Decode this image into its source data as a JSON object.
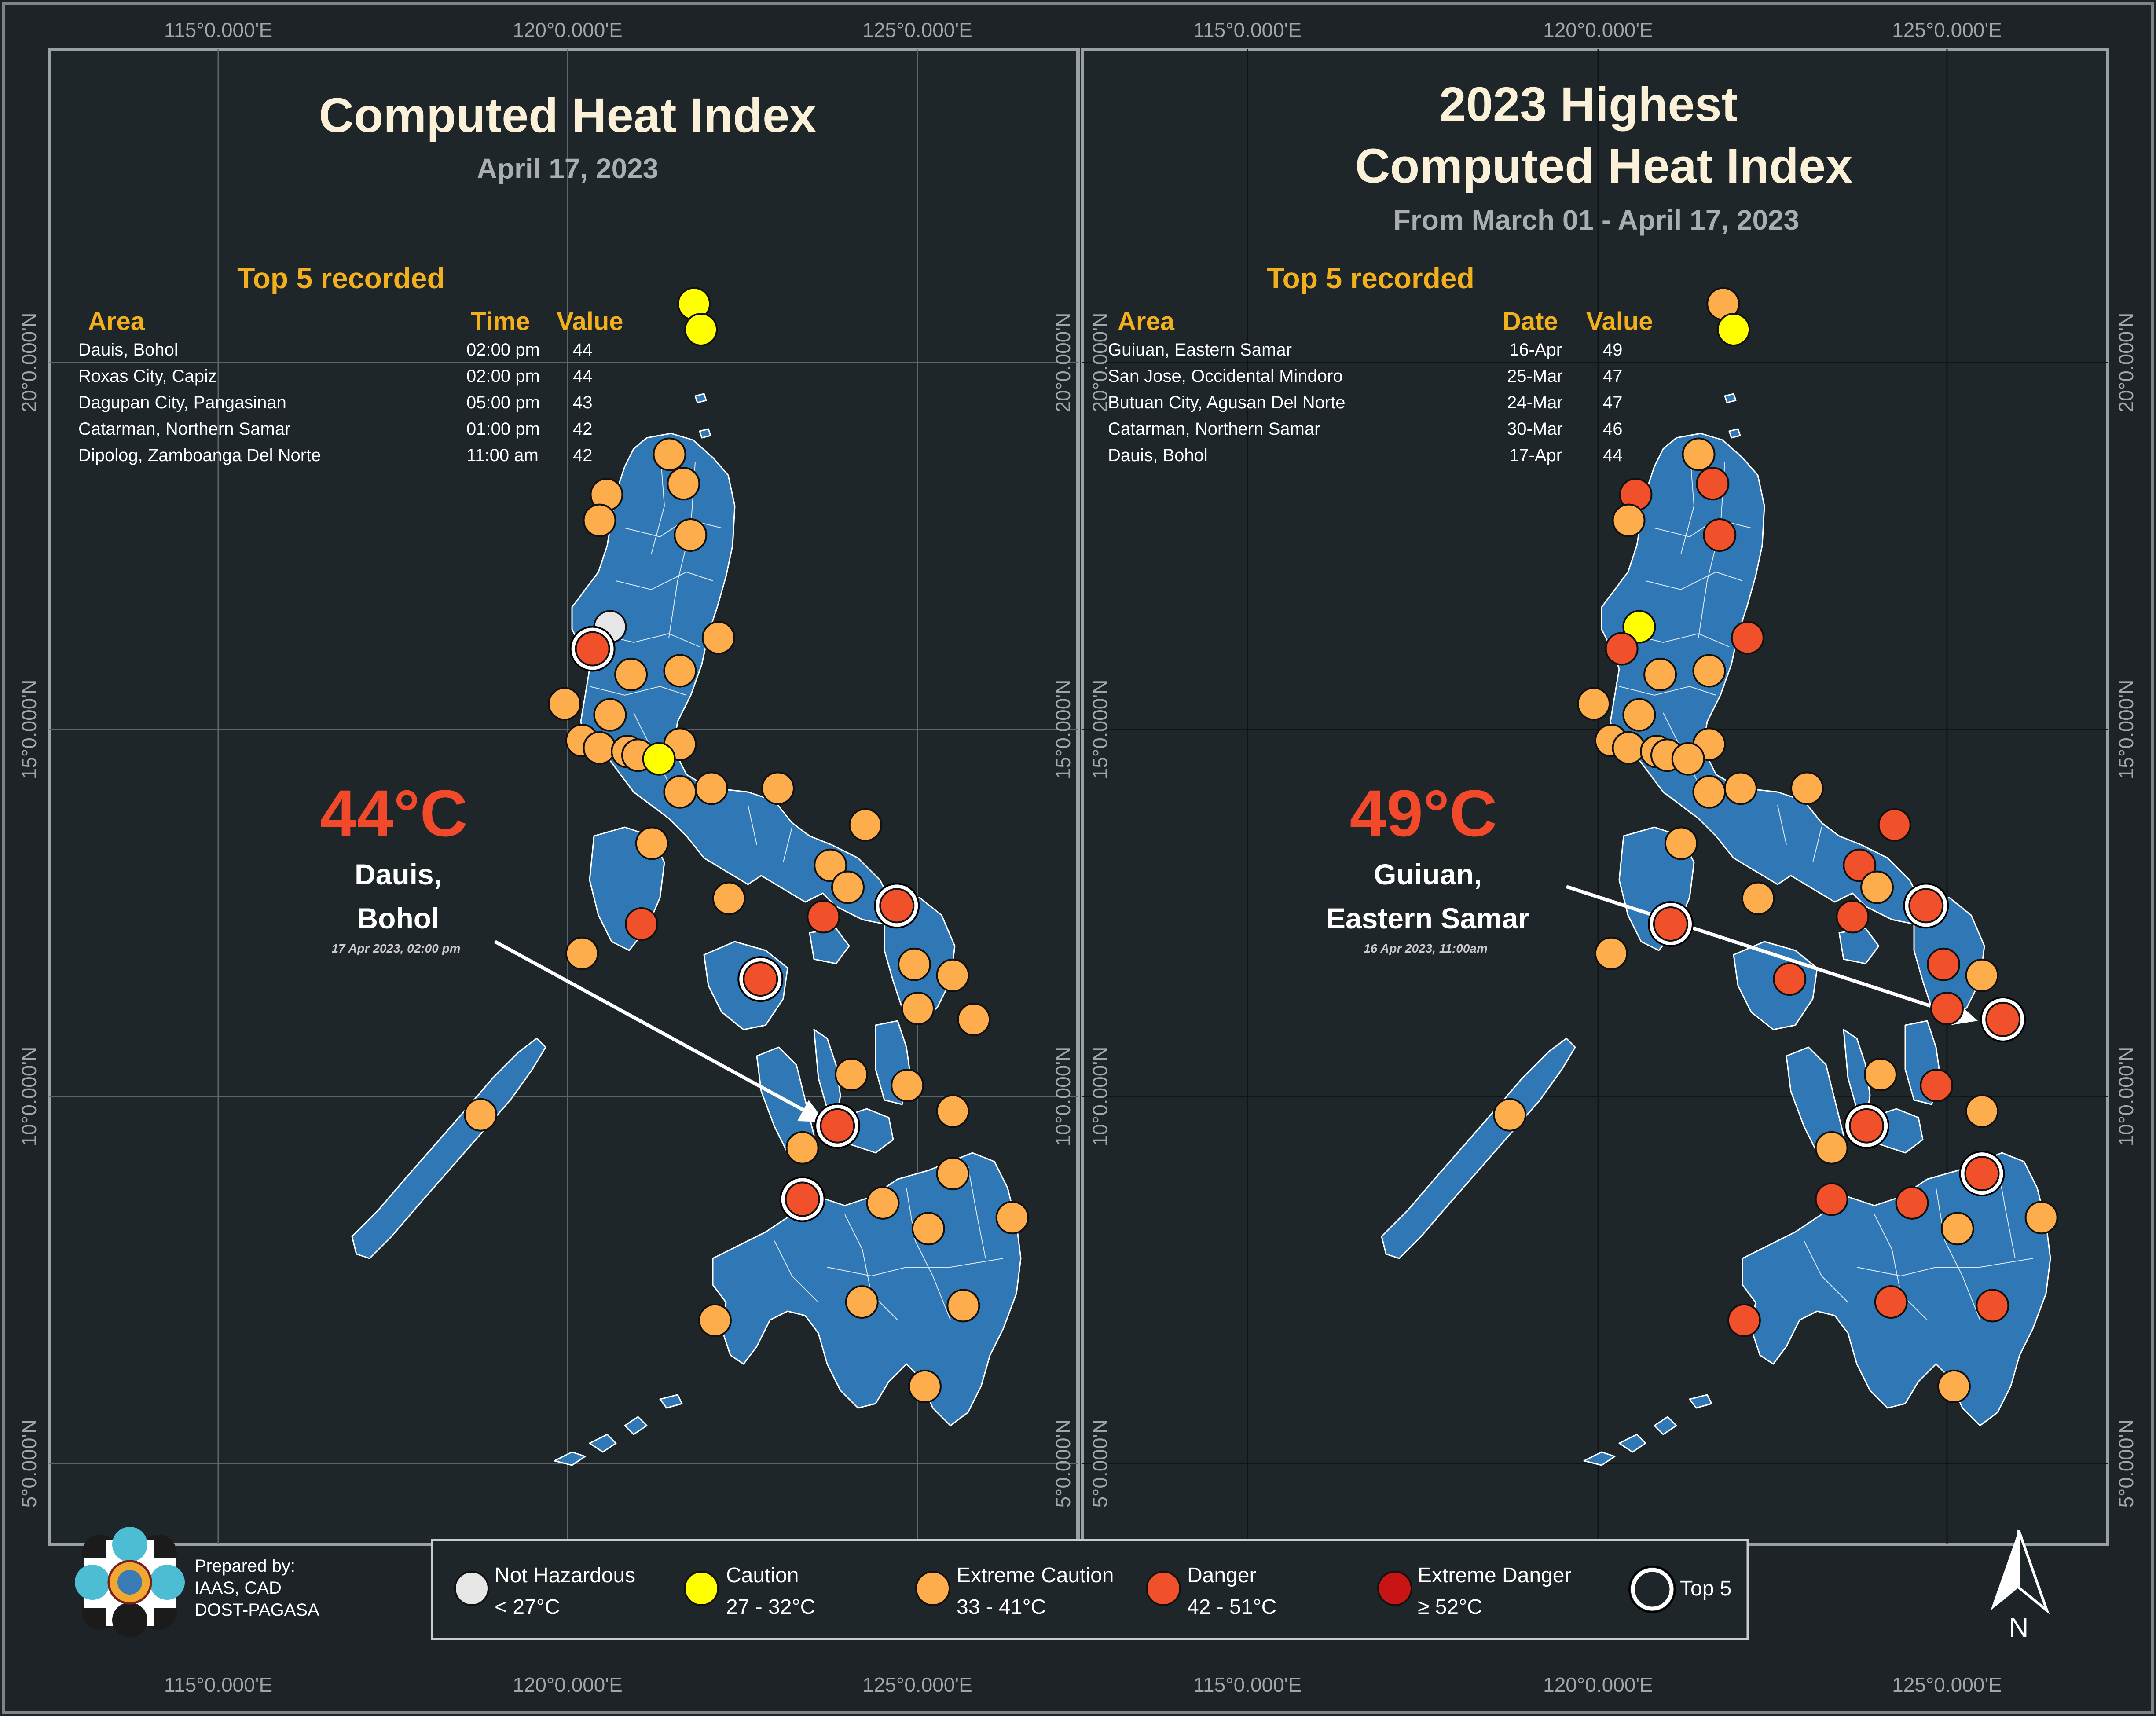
{
  "colors": {
    "background": "#1e2327",
    "land": "#2f78b5",
    "not_hazardous": "#e6e6e6",
    "caution": "#ffff00",
    "extreme_caution": "#fdad4c",
    "danger": "#f0502a",
    "extreme_danger": "#c81414",
    "title": "#fbf1d9",
    "accent": "#f3b01d"
  },
  "axes": {
    "lon_labels": [
      "115°0.000'E",
      "120°0.000'E",
      "125°0.000'E"
    ],
    "lat_labels": [
      "20°0.000'N",
      "15°0.000'N",
      "10°0.000'N",
      "5°0.000'N"
    ]
  },
  "left_panel": {
    "title": "Computed Heat Index",
    "subtitle": "April 17, 2023",
    "top5_heading": "Top 5 recorded",
    "col_area": "Area",
    "col_time": "Time",
    "col_value": "Value",
    "rows": [
      {
        "area": "Dauis, Bohol",
        "time": "02:00 pm",
        "value": "44"
      },
      {
        "area": "Roxas City, Capiz",
        "time": "02:00 pm",
        "value": "44"
      },
      {
        "area": "Dagupan City, Pangasinan",
        "time": "05:00 pm",
        "value": "43"
      },
      {
        "area": "Catarman, Northern Samar",
        "time": "01:00 pm",
        "value": "42"
      },
      {
        "area": "Dipolog, Zamboanga Del Norte",
        "time": "11:00 am",
        "value": "42"
      }
    ],
    "highlight_value": "44°C",
    "highlight_place_1": "Dauis,",
    "highlight_place_2": "Bohol",
    "highlight_time": "17 Apr 2023, 02:00 pm"
  },
  "right_panel": {
    "title_1": "2023 Highest",
    "title_2": "Computed Heat Index",
    "subtitle": "From March 01 - April 17, 2023",
    "top5_heading": "Top 5 recorded",
    "col_area": "Area",
    "col_date": "Date",
    "col_value": "Value",
    "rows": [
      {
        "area": "Guiuan, Eastern Samar",
        "date": "16-Apr",
        "value": "49"
      },
      {
        "area": "San Jose, Occidental Mindoro",
        "date": "25-Mar",
        "value": "47"
      },
      {
        "area": "Butuan City, Agusan Del Norte",
        "date": "24-Mar",
        "value": "47"
      },
      {
        "area": "Catarman, Northern Samar",
        "date": "30-Mar",
        "value": "46"
      },
      {
        "area": "Dauis, Bohol",
        "date": "17-Apr",
        "value": "44"
      }
    ],
    "highlight_value": "49°C",
    "highlight_place_1": "Guiuan,",
    "highlight_place_2": "Eastern Samar",
    "highlight_time": "16 Apr 2023, 11:00am"
  },
  "credits": {
    "line1": "Prepared by:",
    "line2": "IAAS, CAD",
    "line3": "DOST-PAGASA"
  },
  "legend": [
    {
      "key": "not_hazardous",
      "label": "Not Hazardous",
      "range": "< 27°C"
    },
    {
      "key": "caution",
      "label": "Caution",
      "range": "27 - 32°C"
    },
    {
      "key": "extreme_caution",
      "label": "Extreme Caution",
      "range": "33 - 41°C"
    },
    {
      "key": "danger",
      "label": "Danger",
      "range": "42 - 51°C"
    },
    {
      "key": "extreme_danger",
      "label": "Extreme Danger",
      "range": "≥ 52°C"
    },
    {
      "key": "top5",
      "label": "Top 5",
      "range": ""
    }
  ],
  "north_label": "N",
  "stations_left": [
    {
      "lon": 121.8,
      "lat": 20.8,
      "cat": "caution",
      "top": false
    },
    {
      "lon": 121.9,
      "lat": 20.45,
      "cat": "caution",
      "top": false
    },
    {
      "lon": 121.45,
      "lat": 18.75,
      "cat": "extreme_caution",
      "top": false
    },
    {
      "lon": 120.55,
      "lat": 18.2,
      "cat": "extreme_caution",
      "top": false
    },
    {
      "lon": 120.45,
      "lat": 17.85,
      "cat": "extreme_caution",
      "top": false
    },
    {
      "lon": 121.65,
      "lat": 18.35,
      "cat": "extreme_caution",
      "top": false
    },
    {
      "lon": 121.75,
      "lat": 17.65,
      "cat": "extreme_caution",
      "top": false
    },
    {
      "lon": 120.6,
      "lat": 16.4,
      "cat": "not_hazardous",
      "top": false
    },
    {
      "lon": 120.35,
      "lat": 16.1,
      "cat": "danger",
      "top": true
    },
    {
      "lon": 122.15,
      "lat": 16.25,
      "cat": "extreme_caution",
      "top": false
    },
    {
      "lon": 120.9,
      "lat": 15.75,
      "cat": "extreme_caution",
      "top": false
    },
    {
      "lon": 121.6,
      "lat": 15.8,
      "cat": "extreme_caution",
      "top": false
    },
    {
      "lon": 119.95,
      "lat": 15.35,
      "cat": "extreme_caution",
      "top": false
    },
    {
      "lon": 120.6,
      "lat": 15.2,
      "cat": "extreme_caution",
      "top": false
    },
    {
      "lon": 120.2,
      "lat": 14.85,
      "cat": "extreme_caution",
      "top": false
    },
    {
      "lon": 120.45,
      "lat": 14.75,
      "cat": "extreme_caution",
      "top": false
    },
    {
      "lon": 120.85,
      "lat": 14.7,
      "cat": "extreme_caution",
      "top": false
    },
    {
      "lon": 121.0,
      "lat": 14.65,
      "cat": "extreme_caution",
      "top": false
    },
    {
      "lon": 121.6,
      "lat": 14.8,
      "cat": "extreme_caution",
      "top": false
    },
    {
      "lon": 121.3,
      "lat": 14.6,
      "cat": "caution",
      "top": false
    },
    {
      "lon": 121.6,
      "lat": 14.15,
      "cat": "extreme_caution",
      "top": false
    },
    {
      "lon": 122.05,
      "lat": 14.2,
      "cat": "extreme_caution",
      "top": false
    },
    {
      "lon": 123.0,
      "lat": 14.2,
      "cat": "extreme_caution",
      "top": false
    },
    {
      "lon": 124.25,
      "lat": 13.7,
      "cat": "extreme_caution",
      "top": false
    },
    {
      "lon": 121.2,
      "lat": 13.45,
      "cat": "extreme_caution",
      "top": false
    },
    {
      "lon": 123.75,
      "lat": 13.15,
      "cat": "extreme_caution",
      "top": false
    },
    {
      "lon": 124.0,
      "lat": 12.85,
      "cat": "extreme_caution",
      "top": false
    },
    {
      "lon": 122.3,
      "lat": 12.7,
      "cat": "extreme_caution",
      "top": false
    },
    {
      "lon": 124.7,
      "lat": 12.6,
      "cat": "danger",
      "top": true
    },
    {
      "lon": 121.05,
      "lat": 12.35,
      "cat": "danger",
      "top": false
    },
    {
      "lon": 123.65,
      "lat": 12.45,
      "cat": "danger",
      "top": false
    },
    {
      "lon": 120.2,
      "lat": 11.95,
      "cat": "extreme_caution",
      "top": false
    },
    {
      "lon": 122.75,
      "lat": 11.6,
      "cat": "danger",
      "top": true
    },
    {
      "lon": 124.95,
      "lat": 11.8,
      "cat": "extreme_caution",
      "top": false
    },
    {
      "lon": 125.5,
      "lat": 11.65,
      "cat": "extreme_caution",
      "top": false
    },
    {
      "lon": 125.0,
      "lat": 11.2,
      "cat": "extreme_caution",
      "top": false
    },
    {
      "lon": 125.8,
      "lat": 11.05,
      "cat": "extreme_caution",
      "top": false
    },
    {
      "lon": 124.05,
      "lat": 10.3,
      "cat": "extreme_caution",
      "top": false
    },
    {
      "lon": 124.85,
      "lat": 10.15,
      "cat": "extreme_caution",
      "top": false
    },
    {
      "lon": 118.75,
      "lat": 9.75,
      "cat": "extreme_caution",
      "top": false
    },
    {
      "lon": 125.5,
      "lat": 9.8,
      "cat": "extreme_caution",
      "top": false
    },
    {
      "lon": 123.85,
      "lat": 9.6,
      "cat": "danger",
      "top": true
    },
    {
      "lon": 123.35,
      "lat": 9.3,
      "cat": "extreme_caution",
      "top": false
    },
    {
      "lon": 125.5,
      "lat": 8.95,
      "cat": "extreme_caution",
      "top": false
    },
    {
      "lon": 123.35,
      "lat": 8.6,
      "cat": "danger",
      "top": true
    },
    {
      "lon": 124.5,
      "lat": 8.55,
      "cat": "extreme_caution",
      "top": false
    },
    {
      "lon": 126.35,
      "lat": 8.35,
      "cat": "extreme_caution",
      "top": false
    },
    {
      "lon": 125.15,
      "lat": 8.2,
      "cat": "extreme_caution",
      "top": false
    },
    {
      "lon": 124.2,
      "lat": 7.2,
      "cat": "extreme_caution",
      "top": false
    },
    {
      "lon": 125.65,
      "lat": 7.15,
      "cat": "extreme_caution",
      "top": false
    },
    {
      "lon": 122.1,
      "lat": 6.95,
      "cat": "extreme_caution",
      "top": false
    },
    {
      "lon": 125.1,
      "lat": 6.05,
      "cat": "extreme_caution",
      "top": false
    }
  ],
  "stations_right": [
    {
      "lon": 121.8,
      "lat": 20.8,
      "cat": "extreme_caution",
      "top": false
    },
    {
      "lon": 121.95,
      "lat": 20.45,
      "cat": "caution",
      "top": false
    },
    {
      "lon": 121.45,
      "lat": 18.75,
      "cat": "extreme_caution",
      "top": false
    },
    {
      "lon": 120.55,
      "lat": 18.2,
      "cat": "danger",
      "top": false
    },
    {
      "lon": 120.45,
      "lat": 17.85,
      "cat": "extreme_caution",
      "top": false
    },
    {
      "lon": 121.65,
      "lat": 18.35,
      "cat": "danger",
      "top": false
    },
    {
      "lon": 121.75,
      "lat": 17.65,
      "cat": "danger",
      "top": false
    },
    {
      "lon": 120.6,
      "lat": 16.4,
      "cat": "caution",
      "top": false
    },
    {
      "lon": 120.35,
      "lat": 16.1,
      "cat": "danger",
      "top": false
    },
    {
      "lon": 122.15,
      "lat": 16.25,
      "cat": "danger",
      "top": false
    },
    {
      "lon": 120.9,
      "lat": 15.75,
      "cat": "extreme_caution",
      "top": false
    },
    {
      "lon": 121.6,
      "lat": 15.8,
      "cat": "extreme_caution",
      "top": false
    },
    {
      "lon": 119.95,
      "lat": 15.35,
      "cat": "extreme_caution",
      "top": false
    },
    {
      "lon": 120.6,
      "lat": 15.2,
      "cat": "extreme_caution",
      "top": false
    },
    {
      "lon": 120.2,
      "lat": 14.85,
      "cat": "extreme_caution",
      "top": false
    },
    {
      "lon": 120.45,
      "lat": 14.75,
      "cat": "extreme_caution",
      "top": false
    },
    {
      "lon": 120.85,
      "lat": 14.7,
      "cat": "extreme_caution",
      "top": false
    },
    {
      "lon": 121.0,
      "lat": 14.65,
      "cat": "extreme_caution",
      "top": false
    },
    {
      "lon": 121.6,
      "lat": 14.8,
      "cat": "extreme_caution",
      "top": false
    },
    {
      "lon": 121.3,
      "lat": 14.6,
      "cat": "extreme_caution",
      "top": false
    },
    {
      "lon": 121.6,
      "lat": 14.15,
      "cat": "extreme_caution",
      "top": false
    },
    {
      "lon": 122.05,
      "lat": 14.2,
      "cat": "extreme_caution",
      "top": false
    },
    {
      "lon": 123.0,
      "lat": 14.2,
      "cat": "extreme_caution",
      "top": false
    },
    {
      "lon": 124.25,
      "lat": 13.7,
      "cat": "danger",
      "top": false
    },
    {
      "lon": 121.2,
      "lat": 13.45,
      "cat": "extreme_caution",
      "top": false
    },
    {
      "lon": 123.75,
      "lat": 13.15,
      "cat": "danger",
      "top": false
    },
    {
      "lon": 124.0,
      "lat": 12.85,
      "cat": "extreme_caution",
      "top": false
    },
    {
      "lon": 122.3,
      "lat": 12.7,
      "cat": "extreme_caution",
      "top": false
    },
    {
      "lon": 124.7,
      "lat": 12.6,
      "cat": "danger",
      "top": true
    },
    {
      "lon": 121.05,
      "lat": 12.35,
      "cat": "danger",
      "top": true
    },
    {
      "lon": 123.65,
      "lat": 12.45,
      "cat": "danger",
      "top": false
    },
    {
      "lon": 120.2,
      "lat": 11.95,
      "cat": "extreme_caution",
      "top": false
    },
    {
      "lon": 122.75,
      "lat": 11.6,
      "cat": "danger",
      "top": false
    },
    {
      "lon": 124.95,
      "lat": 11.8,
      "cat": "danger",
      "top": false
    },
    {
      "lon": 125.5,
      "lat": 11.65,
      "cat": "extreme_caution",
      "top": false
    },
    {
      "lon": 125.0,
      "lat": 11.2,
      "cat": "danger",
      "top": false
    },
    {
      "lon": 125.8,
      "lat": 11.05,
      "cat": "danger",
      "top": true
    },
    {
      "lon": 124.05,
      "lat": 10.3,
      "cat": "extreme_caution",
      "top": false
    },
    {
      "lon": 124.85,
      "lat": 10.15,
      "cat": "danger",
      "top": false
    },
    {
      "lon": 118.75,
      "lat": 9.75,
      "cat": "extreme_caution",
      "top": false
    },
    {
      "lon": 125.5,
      "lat": 9.8,
      "cat": "extreme_caution",
      "top": false
    },
    {
      "lon": 123.85,
      "lat": 9.6,
      "cat": "danger",
      "top": true
    },
    {
      "lon": 123.35,
      "lat": 9.3,
      "cat": "extreme_caution",
      "top": false
    },
    {
      "lon": 125.5,
      "lat": 8.95,
      "cat": "danger",
      "top": true
    },
    {
      "lon": 123.35,
      "lat": 8.6,
      "cat": "danger",
      "top": false
    },
    {
      "lon": 124.5,
      "lat": 8.55,
      "cat": "danger",
      "top": false
    },
    {
      "lon": 126.35,
      "lat": 8.35,
      "cat": "extreme_caution",
      "top": false
    },
    {
      "lon": 125.15,
      "lat": 8.2,
      "cat": "extreme_caution",
      "top": false
    },
    {
      "lon": 124.2,
      "lat": 7.2,
      "cat": "danger",
      "top": false
    },
    {
      "lon": 125.65,
      "lat": 7.15,
      "cat": "danger",
      "top": false
    },
    {
      "lon": 122.1,
      "lat": 6.95,
      "cat": "danger",
      "top": false
    },
    {
      "lon": 125.1,
      "lat": 6.05,
      "cat": "extreme_caution",
      "top": false
    }
  ]
}
